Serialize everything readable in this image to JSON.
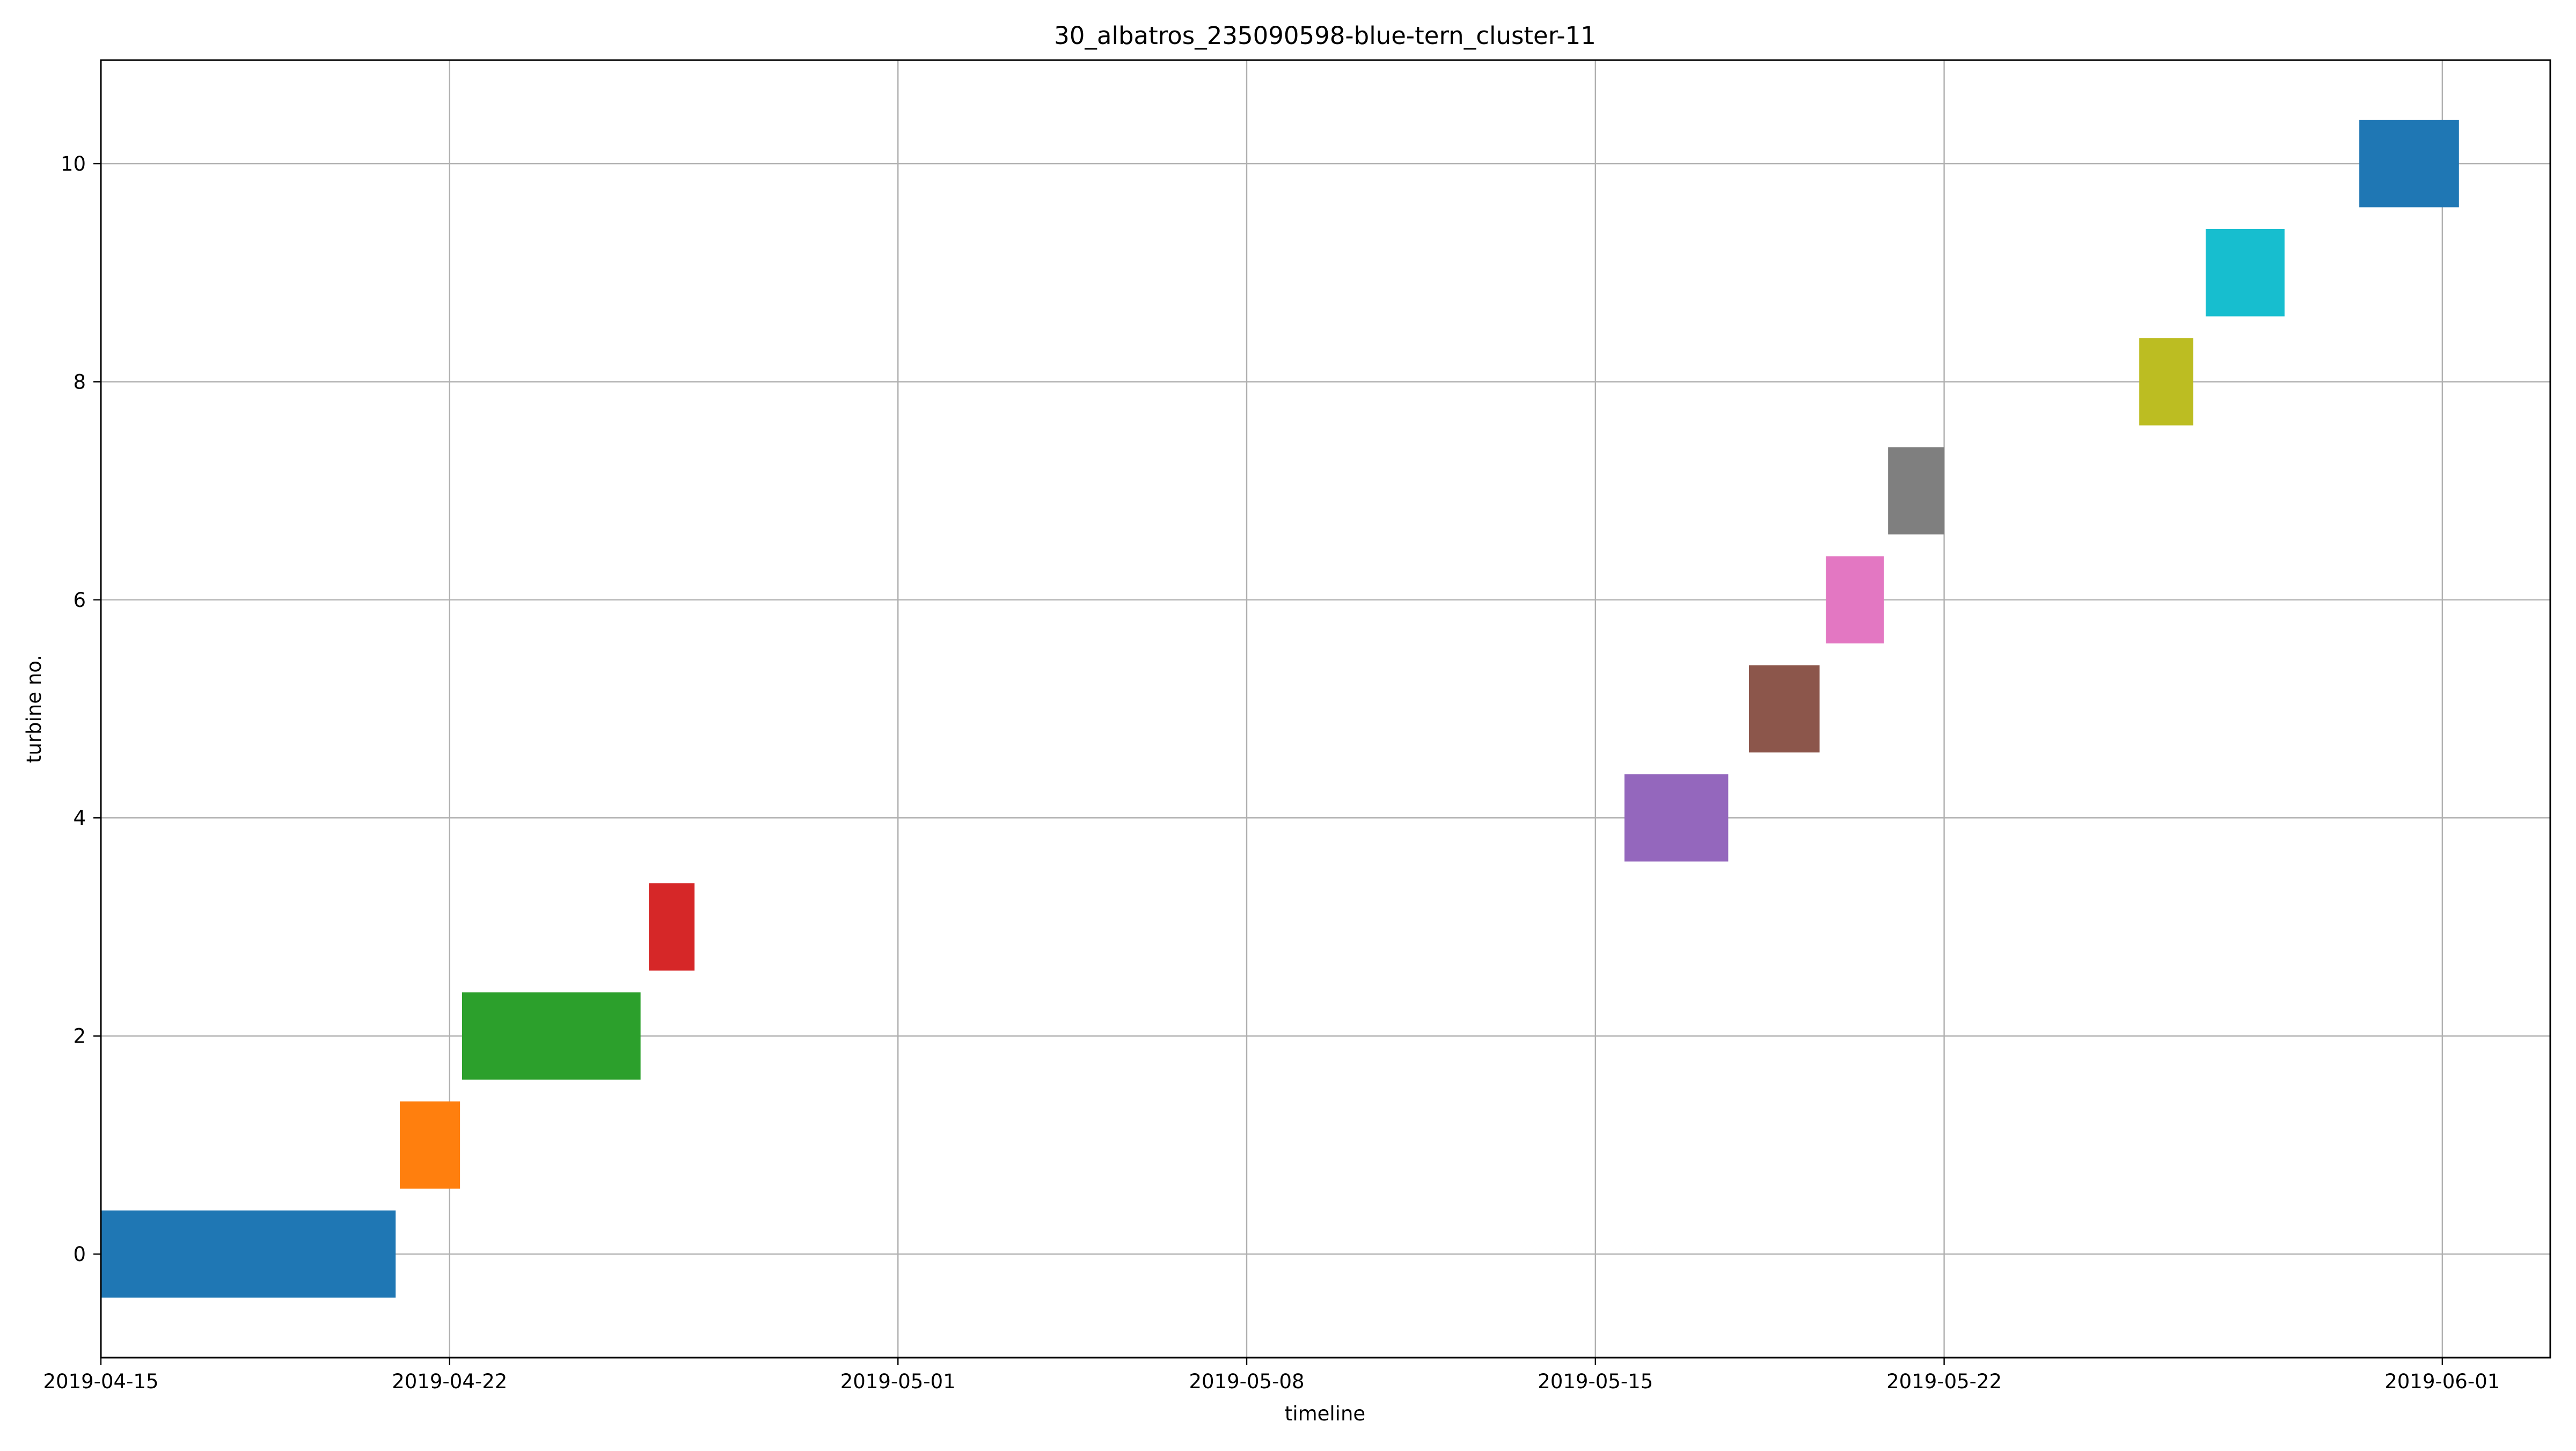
{
  "chart_data": {
    "type": "gantt",
    "title": "30_albatros_235090598-blue-tern_cluster-11",
    "xlabel": "timeline",
    "ylabel": "turbine no.",
    "xlim": [
      "2019-04-15",
      "2019-06-03T04:00"
    ],
    "ylim": [
      -0.95,
      10.95
    ],
    "grid": true,
    "x_ticks": [
      {
        "value": "2019-04-15",
        "label": "2019-04-15"
      },
      {
        "value": "2019-04-22",
        "label": "2019-04-22"
      },
      {
        "value": "2019-05-01",
        "label": "2019-05-01"
      },
      {
        "value": "2019-05-08",
        "label": "2019-05-08"
      },
      {
        "value": "2019-05-15",
        "label": "2019-05-15"
      },
      {
        "value": "2019-05-22",
        "label": "2019-05-22"
      },
      {
        "value": "2019-06-01",
        "label": "2019-06-01"
      }
    ],
    "y_ticks": [
      0,
      2,
      4,
      6,
      8,
      10
    ],
    "bar_half_height": 0.4,
    "bars": [
      {
        "turbine": 0,
        "start": "2019-04-15T00:00",
        "end": "2019-04-20T22:00",
        "color": "#1f77b4"
      },
      {
        "turbine": 1,
        "start": "2019-04-21T00:00",
        "end": "2019-04-22T05:00",
        "color": "#ff7f0e"
      },
      {
        "turbine": 2,
        "start": "2019-04-22T06:00",
        "end": "2019-04-25T20:00",
        "color": "#2ca02c"
      },
      {
        "turbine": 3,
        "start": "2019-04-26T00:00",
        "end": "2019-04-26T22:00",
        "color": "#d62728"
      },
      {
        "turbine": 4,
        "start": "2019-05-15T14:00",
        "end": "2019-05-17T16:00",
        "color": "#9467bd"
      },
      {
        "turbine": 5,
        "start": "2019-05-18T02:00",
        "end": "2019-05-19T12:00",
        "color": "#8c564b"
      },
      {
        "turbine": 6,
        "start": "2019-05-19T15:00",
        "end": "2019-05-20T19:00",
        "color": "#e377c2"
      },
      {
        "turbine": 7,
        "start": "2019-05-20T21:00",
        "end": "2019-05-22T00:00",
        "color": "#7f7f7f"
      },
      {
        "turbine": 8,
        "start": "2019-05-25T22:00",
        "end": "2019-05-27T00:00",
        "color": "#bcbd22"
      },
      {
        "turbine": 9,
        "start": "2019-05-27T06:00",
        "end": "2019-05-28T20:00",
        "color": "#17becf"
      },
      {
        "turbine": 10,
        "start": "2019-05-30T08:00",
        "end": "2019-06-01T08:00",
        "color": "#1f77b4"
      }
    ]
  }
}
